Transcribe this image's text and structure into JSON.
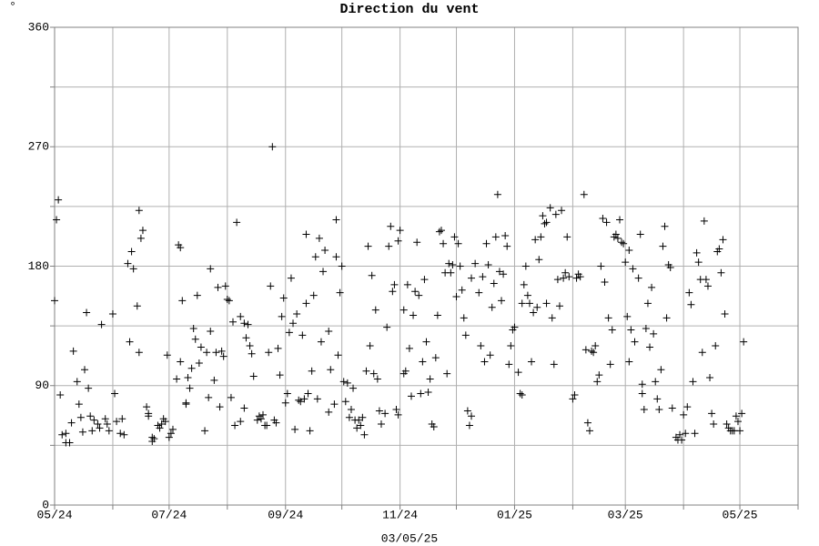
{
  "chart_data": {
    "type": "scatter",
    "title": "Direction du vent",
    "y_label": "°",
    "footer": "03/05/25",
    "marker": "plus",
    "color": "#000000",
    "grid": true,
    "xlim": [
      0,
      396
    ],
    "xticks": [
      {
        "value": 0,
        "label": "05/24"
      },
      {
        "value": 61,
        "label": "07/24"
      },
      {
        "value": 123,
        "label": "09/24"
      },
      {
        "value": 184,
        "label": "11/24"
      },
      {
        "value": 245,
        "label": "01/25"
      },
      {
        "value": 304,
        "label": "03/25"
      },
      {
        "value": 365,
        "label": "05/25"
      }
    ],
    "x_minor_ticks": [
      31,
      92,
      153,
      214,
      276,
      335,
      396
    ],
    "ylim": [
      0,
      360
    ],
    "yticks": [
      0,
      90,
      180,
      270,
      360
    ],
    "y_minor_ticks": [
      45,
      135,
      225,
      315
    ],
    "x": [
      0,
      1,
      2,
      3,
      4,
      6,
      6,
      8,
      9,
      10,
      12,
      13,
      14,
      15,
      16,
      17,
      18,
      19,
      20,
      21,
      23,
      24,
      25,
      27,
      28,
      29,
      31,
      32,
      33,
      35,
      36,
      37,
      39,
      40,
      41,
      42,
      44,
      45,
      45,
      46,
      47,
      49,
      50,
      50,
      52,
      52,
      53,
      55,
      56,
      57,
      58,
      59,
      60,
      61,
      62,
      63,
      65,
      66,
      67,
      67,
      68,
      70,
      70,
      71,
      72,
      73,
      74,
      75,
      76,
      77,
      78,
      80,
      81,
      82,
      83,
      83,
      85,
      86,
      87,
      88,
      89,
      90,
      91,
      92,
      93,
      94,
      95,
      96,
      97,
      99,
      99,
      101,
      101,
      102,
      103,
      104,
      105,
      106,
      108,
      109,
      110,
      111,
      112,
      113,
      114,
      115,
      116,
      117,
      118,
      119,
      120,
      121,
      122,
      123,
      124,
      125,
      126,
      127,
      128,
      129,
      130,
      131,
      132,
      133,
      134,
      134,
      135,
      136,
      137,
      138,
      139,
      140,
      141,
      142,
      143,
      144,
      146,
      146,
      147,
      149,
      150,
      150,
      151,
      152,
      153,
      154,
      155,
      156,
      157,
      158,
      159,
      160,
      161,
      162,
      163,
      164,
      165,
      166,
      167,
      168,
      169,
      170,
      171,
      172,
      173,
      174,
      176,
      177,
      178,
      179,
      180,
      181,
      182,
      183,
      183,
      184,
      186,
      186,
      187,
      188,
      189,
      190,
      191,
      192,
      193,
      194,
      195,
      196,
      197,
      198,
      199,
      200,
      201,
      202,
      203,
      204,
      205,
      206,
      207,
      208,
      209,
      210,
      211,
      212,
      213,
      214,
      215,
      216,
      217,
      218,
      219,
      220,
      221,
      222,
      222,
      224,
      226,
      227,
      228,
      229,
      230,
      231,
      232,
      233,
      234,
      235,
      236,
      237,
      238,
      239,
      240,
      241,
      242,
      243,
      244,
      245,
      247,
      248,
      249,
      249,
      250,
      251,
      252,
      253,
      254,
      255,
      256,
      257,
      258,
      259,
      260,
      261,
      262,
      262,
      264,
      265,
      266,
      267,
      268,
      269,
      270,
      271,
      272,
      273,
      274,
      276,
      277,
      278,
      279,
      280,
      282,
      283,
      284,
      285,
      286,
      287,
      288,
      289,
      290,
      291,
      292,
      293,
      294,
      295,
      296,
      297,
      298,
      299,
      300,
      301,
      302,
      303,
      304,
      305,
      306,
      306,
      307,
      308,
      309,
      311,
      312,
      313,
      313,
      314,
      315,
      316,
      317,
      318,
      319,
      320,
      321,
      322,
      323,
      324,
      325,
      326,
      327,
      328,
      329,
      331,
      332,
      333,
      334,
      335,
      336,
      337,
      338,
      339,
      340,
      341,
      342,
      343,
      344,
      345,
      346,
      347,
      348,
      349,
      350,
      351,
      352,
      353,
      354,
      355,
      356,
      357,
      358,
      359,
      360,
      361,
      362,
      363,
      364,
      365,
      366,
      367
    ],
    "values": [
      154,
      215,
      230,
      83,
      53,
      54,
      47,
      47,
      62,
      116,
      93,
      76,
      66,
      55,
      102,
      145,
      88,
      67,
      56,
      64,
      61,
      58,
      136,
      65,
      61,
      56,
      144,
      84,
      63,
      54,
      65,
      53,
      182,
      123,
      191,
      178,
      150,
      115,
      222,
      201,
      207,
      74,
      67,
      69,
      51,
      48,
      50,
      60,
      58,
      61,
      65,
      63,
      113,
      51,
      54,
      57,
      95,
      196,
      194,
      108,
      154,
      77,
      76,
      96,
      88,
      103,
      133,
      125,
      158,
      107,
      119,
      56,
      115,
      81,
      178,
      131,
      94,
      115,
      164,
      74,
      116,
      112,
      165,
      155,
      154,
      81,
      138,
      60,
      213,
      142,
      63,
      73,
      137,
      126,
      136,
      120,
      114,
      97,
      64,
      67,
      65,
      68,
      60,
      60,
      115,
      165,
      270,
      64,
      62,
      118,
      98,
      142,
      156,
      77,
      84,
      130,
      171,
      137,
      57,
      144,
      79,
      78,
      128,
      80,
      152,
      204,
      84,
      56,
      101,
      158,
      187,
      80,
      201,
      123,
      176,
      192,
      131,
      70,
      102,
      76,
      215,
      187,
      113,
      160,
      180,
      93,
      78,
      92,
      66,
      72,
      88,
      64,
      58,
      64,
      60,
      66,
      53,
      101,
      195,
      120,
      173,
      99,
      147,
      95,
      71,
      61,
      69,
      134,
      195,
      210,
      161,
      166,
      72,
      68,
      199,
      207,
      99,
      147,
      101,
      166,
      118,
      82,
      143,
      161,
      198,
      158,
      84,
      108,
      170,
      123,
      85,
      95,
      61,
      59,
      111,
      143,
      206,
      207,
      197,
      175,
      99,
      182,
      175,
      181,
      202,
      157,
      197,
      180,
      162,
      141,
      128,
      71,
      60,
      67,
      171,
      182,
      160,
      120,
      172,
      108,
      197,
      181,
      113,
      149,
      167,
      202,
      234,
      176,
      154,
      174,
      203,
      195,
      106,
      120,
      132,
      134,
      100,
      84,
      83,
      152,
      166,
      180,
      158,
      152,
      108,
      145,
      200,
      149,
      185,
      202,
      218,
      212,
      213,
      152,
      224,
      141,
      106,
      219,
      170,
      150,
      222,
      171,
      175,
      202,
      172,
      80,
      83,
      171,
      174,
      172,
      234,
      117,
      62,
      56,
      116,
      115,
      120,
      93,
      98,
      180,
      216,
      168,
      213,
      141,
      106,
      132,
      202,
      204,
      201,
      215,
      198,
      197,
      183,
      142,
      108,
      192,
      132,
      178,
      123,
      171,
      204,
      91,
      84,
      72,
      133,
      152,
      119,
      164,
      129,
      93,
      80,
      72,
      102,
      195,
      210,
      141,
      181,
      179,
      73,
      51,
      49,
      53,
      49,
      68,
      54,
      74,
      160,
      151,
      93,
      54,
      190,
      183,
      170,
      115,
      214,
      170,
      165,
      96,
      69,
      61,
      120,
      191,
      193,
      175,
      200,
      144,
      61,
      58,
      56,
      56,
      56,
      67,
      63,
      56,
      69,
      123
    ]
  }
}
